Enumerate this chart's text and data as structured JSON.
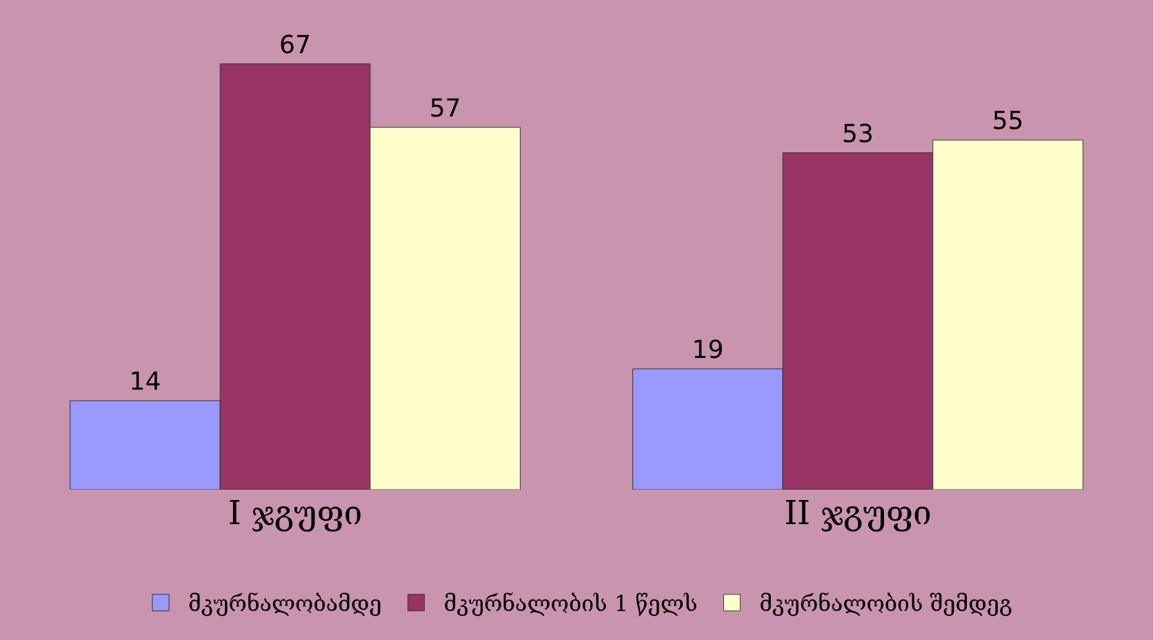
{
  "chart_data": {
    "type": "bar",
    "categories": [
      "I ჯგუფი",
      "II ჯგუფი"
    ],
    "series": [
      {
        "name": "მკურნალობამდე",
        "color": "#9999ff",
        "values": [
          14,
          19
        ]
      },
      {
        "name": "მკურნალობის 1 წელს",
        "color": "#993366",
        "values": [
          67,
          53
        ]
      },
      {
        "name": "მკურნალობის შემდეგ",
        "color": "#ffffcc",
        "values": [
          57,
          55
        ]
      }
    ],
    "data_labels": true,
    "legend": "bottom"
  }
}
